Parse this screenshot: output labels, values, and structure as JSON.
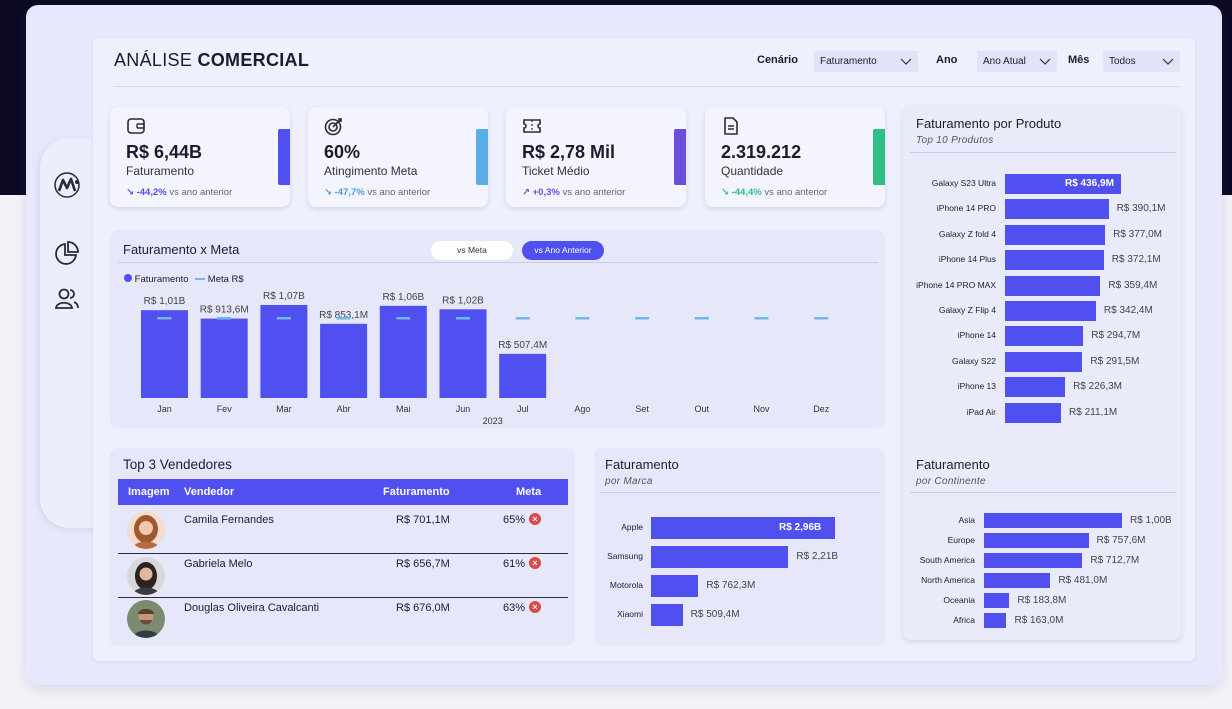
{
  "header": {
    "title_light": "ANÁLISE",
    "title_bold": "COMERCIAL",
    "filters": [
      {
        "label": "Cenário",
        "value": "Faturamento"
      },
      {
        "label": "Ano",
        "value": "Ano Atual"
      },
      {
        "label": "Mês",
        "value": "Todos"
      }
    ]
  },
  "kpis": [
    {
      "icon": "wallet-icon",
      "value": "R$ 6,44B",
      "label": "Faturamento",
      "arrow": "↘",
      "delta": "-44,2%",
      "delta_text": "vs ano anterior",
      "color": "#5050f0"
    },
    {
      "icon": "target-icon",
      "value": "60%",
      "label": "Atingimento Meta",
      "arrow": "↘",
      "delta": "-47,7%",
      "delta_text": "vs ano anterior",
      "color": "#5aaee8"
    },
    {
      "icon": "ticket-icon",
      "value": "R$ 2,78 Mil",
      "label": "Ticket Médio",
      "arrow": "↗",
      "delta": "+0,3%",
      "delta_text": "vs ano anterior",
      "color": "#6a4fd8"
    },
    {
      "icon": "document-icon",
      "value": "2.319.212",
      "label": "Quantidade",
      "arrow": "↘",
      "delta": "-44,4%",
      "delta_text": "vs ano anterior",
      "color": "#2fbf86"
    }
  ],
  "faturamento_meta": {
    "title": "Faturamento x Meta",
    "toggles": [
      "vs Meta",
      "vs Ano Anterior"
    ],
    "active_toggle": "vs Ano Anterior",
    "legend": [
      "Faturamento",
      "Meta R$"
    ],
    "year": "2023"
  },
  "top_vendedores": {
    "title": "Top 3 Vendedores",
    "headers": [
      "Imagem",
      "Vendedor",
      "Faturamento",
      "Meta"
    ],
    "rows": [
      {
        "name": "Camila Fernandes",
        "faturamento": "R$ 701,1M",
        "meta": "65%"
      },
      {
        "name": "Gabriela Melo",
        "faturamento": "R$ 656,7M",
        "meta": "61%"
      },
      {
        "name": "Douglas Oliveira Cavalcanti",
        "faturamento": "R$ 676,0M",
        "meta": "63%"
      }
    ]
  },
  "marca_panel": {
    "title": "Faturamento",
    "subtitle": "por Marca"
  },
  "produto_panel": {
    "title": "Faturamento por Produto",
    "subtitle": "Top 10 Produtos"
  },
  "continente_panel": {
    "title": "Faturamento",
    "subtitle": "por Continente"
  },
  "chart_data": [
    {
      "type": "bar",
      "title": "Faturamento x Meta",
      "categories": [
        "Jan",
        "Fev",
        "Mar",
        "Abr",
        "Mai",
        "Jun",
        "Jul",
        "Ago",
        "Set",
        "Out",
        "Nov",
        "Dez"
      ],
      "series": [
        {
          "name": "Faturamento",
          "values": [
            1.01,
            0.9136,
            1.07,
            0.8531,
            1.06,
            1.02,
            0.5074,
            null,
            null,
            null,
            null,
            null
          ],
          "labels": [
            "R$ 1,01B",
            "R$ 913,6M",
            "R$ 1,07B",
            "R$ 853,1M",
            "R$ 1,06B",
            "R$ 1,02B",
            "R$ 507,4M",
            "",
            "",
            "",
            "",
            ""
          ]
        },
        {
          "name": "Meta R$",
          "values": [
            0.92,
            0.92,
            0.92,
            0.92,
            0.92,
            0.92,
            0.92,
            0.92,
            0.92,
            0.92,
            0.92,
            0.92
          ]
        }
      ],
      "xlabel": "2023",
      "ylim": [
        0,
        1.15
      ],
      "legend": "top-left",
      "grid": false
    },
    {
      "type": "bar",
      "orientation": "horizontal",
      "title": "Faturamento por Produto",
      "categories": [
        "Galaxy S23 Ultra",
        "iPhone 14 PRO",
        "Galaxy Z fold 4",
        "iPhone 14 Plus",
        "iPhone 14 PRO MAX",
        "Galaxy Z Flip 4",
        "iPhone 14",
        "Galaxy S22",
        "iPhone 13",
        "iPad Air"
      ],
      "values": [
        436.9,
        390.1,
        377.0,
        372.1,
        359.4,
        342.4,
        294.7,
        291.5,
        226.3,
        211.1
      ],
      "labels": [
        "R$ 436,9M",
        "R$ 390,1M",
        "R$ 377,0M",
        "R$ 372,1M",
        "R$ 359,4M",
        "R$ 342,4M",
        "R$ 294,7M",
        "R$ 291,5M",
        "R$ 226,3M",
        "R$ 211,1M"
      ]
    },
    {
      "type": "bar",
      "orientation": "horizontal",
      "title": "Faturamento por Marca",
      "categories": [
        "Apple",
        "Samsung",
        "Motorola",
        "Xiaomi"
      ],
      "values": [
        2.96,
        2.21,
        0.7623,
        0.5094
      ],
      "labels": [
        "R$ 2,96B",
        "R$ 2,21B",
        "R$ 762,3M",
        "R$ 509,4M"
      ]
    },
    {
      "type": "bar",
      "orientation": "horizontal",
      "title": "Faturamento por Continente",
      "categories": [
        "Asia",
        "Europe",
        "South America",
        "North America",
        "Oceania",
        "Africa"
      ],
      "values": [
        1.0,
        0.7576,
        0.7127,
        0.481,
        0.1838,
        0.163
      ],
      "labels": [
        "R$ 1,00B",
        "R$ 757,6M",
        "R$ 712,7M",
        "R$ 481,0M",
        "R$ 183,8M",
        "R$ 163,0M"
      ]
    }
  ]
}
